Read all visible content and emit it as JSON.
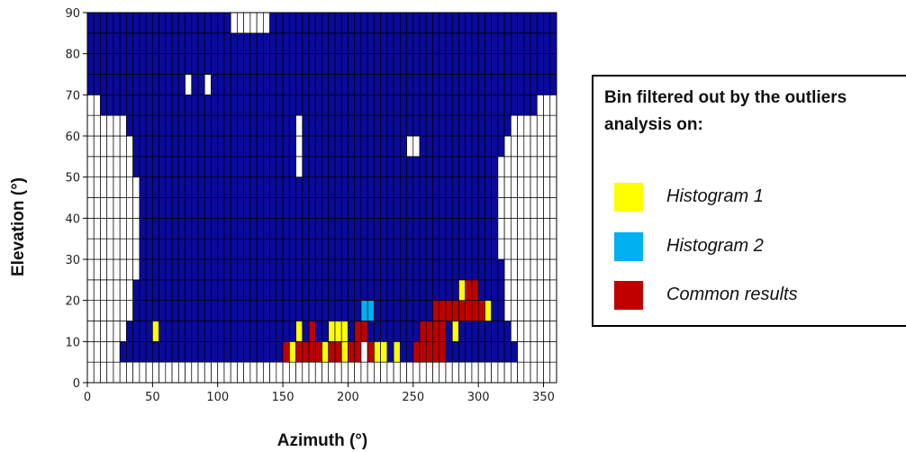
{
  "chart_data": {
    "type": "heatmap",
    "title": "",
    "xlabel": "Azimuth (°)",
    "ylabel": "Elevation (°)",
    "xlim": [
      0,
      360
    ],
    "ylim": [
      0,
      90
    ],
    "x_ticks": [
      0,
      50,
      100,
      150,
      200,
      250,
      300,
      350
    ],
    "y_ticks": [
      0,
      10,
      20,
      30,
      40,
      50,
      60,
      70,
      80,
      90
    ],
    "bin_size": {
      "azimuth": 5,
      "elevation": 5
    },
    "grid": true,
    "colors": {
      "bin_valid": "#0a0a9c",
      "bin_empty": "#ffffff",
      "histogram_1": "#ffff00",
      "histogram_2": "#00b0f0",
      "common_results": "#c00000"
    },
    "valid_region_by_elevation_row": [
      {
        "elevation": [
          0,
          5
        ],
        "azimuth": [
          0,
          0
        ]
      },
      {
        "elevation": [
          5,
          10
        ],
        "azimuth": [
          25,
          330
        ]
      },
      {
        "elevation": [
          10,
          15
        ],
        "azimuth": [
          30,
          325
        ]
      },
      {
        "elevation": [
          15,
          20
        ],
        "azimuth": [
          35,
          320
        ]
      },
      {
        "elevation": [
          20,
          25
        ],
        "azimuth": [
          35,
          320
        ]
      },
      {
        "elevation": [
          25,
          30
        ],
        "azimuth": [
          40,
          320
        ]
      },
      {
        "elevation": [
          30,
          35
        ],
        "azimuth": [
          40,
          315
        ]
      },
      {
        "elevation": [
          35,
          40
        ],
        "azimuth": [
          40,
          315
        ]
      },
      {
        "elevation": [
          40,
          45
        ],
        "azimuth": [
          40,
          315
        ]
      },
      {
        "elevation": [
          45,
          50
        ],
        "azimuth": [
          40,
          315
        ]
      },
      {
        "elevation": [
          50,
          55
        ],
        "azimuth": [
          35,
          315
        ]
      },
      {
        "elevation": [
          55,
          60
        ],
        "azimuth": [
          35,
          320
        ]
      },
      {
        "elevation": [
          60,
          65
        ],
        "azimuth": [
          30,
          325
        ]
      },
      {
        "elevation": [
          65,
          70
        ],
        "azimuth": [
          10,
          345
        ]
      },
      {
        "elevation": [
          70,
          75
        ],
        "azimuth": [
          0,
          360
        ]
      },
      {
        "elevation": [
          75,
          80
        ],
        "azimuth": [
          0,
          360
        ]
      },
      {
        "elevation": [
          80,
          85
        ],
        "azimuth": [
          0,
          360
        ]
      },
      {
        "elevation": [
          85,
          90
        ],
        "azimuth": [
          0,
          360
        ]
      }
    ],
    "empty_bins_inside_region": [
      {
        "azimuth": 110,
        "elevation": 85
      },
      {
        "azimuth": 115,
        "elevation": 85
      },
      {
        "azimuth": 120,
        "elevation": 85
      },
      {
        "azimuth": 125,
        "elevation": 85
      },
      {
        "azimuth": 130,
        "elevation": 85
      },
      {
        "azimuth": 135,
        "elevation": 85
      },
      {
        "azimuth": 75,
        "elevation": 70
      },
      {
        "azimuth": 90,
        "elevation": 70
      },
      {
        "azimuth": 160,
        "elevation": 60
      },
      {
        "azimuth": 160,
        "elevation": 55
      },
      {
        "azimuth": 160,
        "elevation": 50
      },
      {
        "azimuth": 245,
        "elevation": 55
      },
      {
        "azimuth": 250,
        "elevation": 55
      },
      {
        "azimuth": 210,
        "elevation": 5
      }
    ],
    "series": [
      {
        "name": "Histogram 1",
        "bins": [
          {
            "azimuth": 50,
            "elevation": 10
          },
          {
            "azimuth": 160,
            "elevation": 10
          },
          {
            "azimuth": 185,
            "elevation": 10
          },
          {
            "azimuth": 190,
            "elevation": 10
          },
          {
            "azimuth": 195,
            "elevation": 10
          },
          {
            "azimuth": 195,
            "elevation": 5
          },
          {
            "azimuth": 155,
            "elevation": 5
          },
          {
            "azimuth": 180,
            "elevation": 5
          },
          {
            "azimuth": 220,
            "elevation": 5
          },
          {
            "azimuth": 225,
            "elevation": 5
          },
          {
            "azimuth": 235,
            "elevation": 5
          },
          {
            "azimuth": 280,
            "elevation": 10
          },
          {
            "azimuth": 305,
            "elevation": 15
          },
          {
            "azimuth": 285,
            "elevation": 20
          }
        ]
      },
      {
        "name": "Histogram 2",
        "bins": [
          {
            "azimuth": 210,
            "elevation": 15
          },
          {
            "azimuth": 215,
            "elevation": 15
          }
        ]
      },
      {
        "name": "Common results",
        "bins": [
          {
            "azimuth": 150,
            "elevation": 5
          },
          {
            "azimuth": 160,
            "elevation": 5
          },
          {
            "azimuth": 165,
            "elevation": 5
          },
          {
            "azimuth": 170,
            "elevation": 5
          },
          {
            "azimuth": 175,
            "elevation": 5
          },
          {
            "azimuth": 185,
            "elevation": 5
          },
          {
            "azimuth": 190,
            "elevation": 5
          },
          {
            "azimuth": 200,
            "elevation": 5
          },
          {
            "azimuth": 205,
            "elevation": 5
          },
          {
            "azimuth": 215,
            "elevation": 5
          },
          {
            "azimuth": 250,
            "elevation": 5
          },
          {
            "azimuth": 255,
            "elevation": 5
          },
          {
            "azimuth": 260,
            "elevation": 5
          },
          {
            "azimuth": 265,
            "elevation": 5
          },
          {
            "azimuth": 270,
            "elevation": 5
          },
          {
            "azimuth": 170,
            "elevation": 10
          },
          {
            "azimuth": 205,
            "elevation": 10
          },
          {
            "azimuth": 210,
            "elevation": 10
          },
          {
            "azimuth": 255,
            "elevation": 10
          },
          {
            "azimuth": 260,
            "elevation": 10
          },
          {
            "azimuth": 265,
            "elevation": 10
          },
          {
            "azimuth": 270,
            "elevation": 10
          },
          {
            "azimuth": 265,
            "elevation": 15
          },
          {
            "azimuth": 270,
            "elevation": 15
          },
          {
            "azimuth": 275,
            "elevation": 15
          },
          {
            "azimuth": 280,
            "elevation": 15
          },
          {
            "azimuth": 285,
            "elevation": 15
          },
          {
            "azimuth": 290,
            "elevation": 15
          },
          {
            "azimuth": 295,
            "elevation": 15
          },
          {
            "azimuth": 300,
            "elevation": 15
          },
          {
            "azimuth": 290,
            "elevation": 20
          },
          {
            "azimuth": 295,
            "elevation": 20
          }
        ]
      }
    ]
  },
  "legend": {
    "title": "Bin filtered out by the outliers analysis on:",
    "items": [
      {
        "label": "Histogram 1",
        "color": "#ffff00"
      },
      {
        "label": "Histogram 2",
        "color": "#00b0f0"
      },
      {
        "label": "Common results",
        "color": "#c00000"
      }
    ]
  }
}
